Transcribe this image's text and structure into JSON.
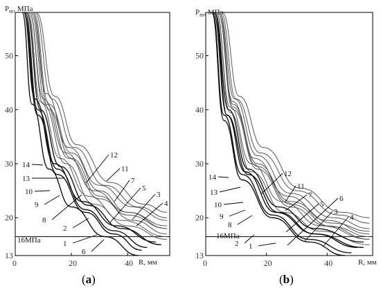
{
  "chart_data": [
    {
      "type": "line",
      "panel_label": "a",
      "ylabel": "P",
      "ylabel_sub": "m",
      "ylabel_unit": ", МПа",
      "xlabel": "R, мм",
      "xlim": [
        0,
        55
      ],
      "ylim": [
        13,
        58
      ],
      "x_ticks": [
        "0",
        "20",
        "40"
      ],
      "y_ticks": [
        "13",
        "20",
        "30",
        "40",
        "50"
      ],
      "reference_line": {
        "y": 16.5,
        "label": "16МПа"
      },
      "series": [
        {
          "name": "1",
          "values": [
            [
              3,
              58
            ],
            [
              8,
              39
            ],
            [
              15,
              28
            ],
            [
              25,
              21
            ],
            [
              35,
              17
            ],
            [
              45,
              14
            ]
          ]
        },
        {
          "name": "2",
          "values": [
            [
              3.5,
              58
            ],
            [
              8,
              40
            ],
            [
              15,
              29
            ],
            [
              25,
              21.5
            ],
            [
              35,
              17.6
            ],
            [
              47,
              14.5
            ]
          ]
        },
        {
          "name": "3",
          "values": [
            [
              6,
              58
            ],
            [
              12,
              40
            ],
            [
              20,
              31
            ],
            [
              30,
              24
            ],
            [
              40,
              20.5
            ],
            [
              54,
              18
            ]
          ]
        },
        {
          "name": "4",
          "values": [
            [
              6.5,
              58
            ],
            [
              12,
              41
            ],
            [
              20,
              32
            ],
            [
              30,
              25
            ],
            [
              40,
              21
            ],
            [
              54,
              18.5
            ]
          ]
        },
        {
          "name": "5",
          "values": [
            [
              5,
              58
            ],
            [
              10,
              41
            ],
            [
              18,
              30
            ],
            [
              28,
              22.5
            ],
            [
              40,
              18.5
            ],
            [
              54,
              16
            ]
          ]
        },
        {
          "name": "6",
          "values": [
            [
              2.5,
              58
            ],
            [
              6,
              41
            ],
            [
              12,
              29
            ],
            [
              20,
              22
            ],
            [
              32,
              16.5
            ],
            [
              44,
              13
            ]
          ]
        },
        {
          "name": "7",
          "values": [
            [
              5.5,
              58
            ],
            [
              11,
              41
            ],
            [
              19,
              31
            ],
            [
              30,
              23.5
            ],
            [
              42,
              19.5
            ],
            [
              54,
              17
            ]
          ]
        },
        {
          "name": "8",
          "values": [
            [
              4,
              58
            ],
            [
              9,
              40
            ],
            [
              16,
              29.5
            ],
            [
              26,
              22.3
            ],
            [
              38,
              18
            ],
            [
              52,
              15
            ]
          ]
        },
        {
          "name": "9",
          "values": [
            [
              3,
              58
            ],
            [
              7,
              42
            ],
            [
              14,
              30
            ],
            [
              24,
              23
            ],
            [
              36,
              18.5
            ],
            [
              50,
              15.5
            ]
          ]
        },
        {
          "name": "10",
          "values": [
            [
              4.5,
              58
            ],
            [
              9,
              41.5
            ],
            [
              16,
              31
            ],
            [
              26,
              24
            ],
            [
              38,
              19.5
            ],
            [
              54,
              16.5
            ]
          ]
        },
        {
          "name": "11",
          "values": [
            [
              7,
              58
            ],
            [
              13,
              42
            ],
            [
              21,
              33
            ],
            [
              32,
              26
            ],
            [
              44,
              22
            ],
            [
              54,
              20
            ]
          ]
        },
        {
          "name": "12",
          "values": [
            [
              7.5,
              58
            ],
            [
              14,
              42.5
            ],
            [
              22,
              33.5
            ],
            [
              34,
              26.5
            ],
            [
              46,
              22.5
            ],
            [
              54,
              21
            ]
          ]
        },
        {
          "name": "13",
          "values": [
            [
              5,
              58
            ],
            [
              10,
              42
            ],
            [
              18,
              32
            ],
            [
              28,
              25
            ],
            [
              40,
              21
            ],
            [
              54,
              18
            ]
          ]
        },
        {
          "name": "14",
          "values": [
            [
              6,
              58
            ],
            [
              11,
              43
            ],
            [
              19,
              33
            ],
            [
              30,
              26
            ],
            [
              42,
              22
            ],
            [
              54,
              19.5
            ]
          ]
        }
      ]
    },
    {
      "type": "line",
      "panel_label": "b",
      "ylabel": "P",
      "ylabel_sub": "m",
      "ylabel_unit": ", МПа",
      "xlabel": "R, мм",
      "xlim": [
        0,
        55
      ],
      "ylim": [
        13,
        58
      ],
      "x_ticks": [
        "0",
        "20",
        "40"
      ],
      "y_ticks": [
        "13",
        "20",
        "30",
        "40",
        "50"
      ],
      "reference_line": {
        "y": 16.5,
        "label": "16МПа"
      },
      "series": [
        {
          "name": "1",
          "values": [
            [
              2,
              58
            ],
            [
              6,
              38
            ],
            [
              12,
              27
            ],
            [
              22,
              20
            ],
            [
              34,
              15.5
            ],
            [
              46,
              13
            ]
          ]
        },
        {
          "name": "2",
          "values": [
            [
              2.2,
              58
            ],
            [
              6,
              39
            ],
            [
              12,
              28
            ],
            [
              22,
              20.5
            ],
            [
              34,
              16
            ],
            [
              48,
              13.5
            ]
          ]
        },
        {
          "name": "3",
          "values": [
            [
              4,
              58
            ],
            [
              9,
              40
            ],
            [
              17,
              29
            ],
            [
              28,
              22
            ],
            [
              40,
              18.5
            ],
            [
              54,
              16
            ]
          ]
        },
        {
          "name": "4",
          "values": [
            [
              4.5,
              58
            ],
            [
              9,
              40.5
            ],
            [
              17,
              29.5
            ],
            [
              28,
              22.5
            ],
            [
              42,
              18.3
            ],
            [
              54,
              16.5
            ]
          ]
        },
        {
          "name": "5",
          "values": [
            [
              3.5,
              58
            ],
            [
              8,
              39.5
            ],
            [
              15,
              28.5
            ],
            [
              26,
              21
            ],
            [
              38,
              17.5
            ],
            [
              54,
              15
            ]
          ]
        },
        {
          "name": "6",
          "values": [
            [
              3,
              58
            ],
            [
              7,
              39
            ],
            [
              14,
              28
            ],
            [
              24,
              21
            ],
            [
              36,
              17
            ],
            [
              52,
              14.5
            ]
          ]
        },
        {
          "name": "7",
          "values": [
            [
              4,
              58
            ],
            [
              9,
              41
            ],
            [
              17,
              30
            ],
            [
              28,
              23
            ],
            [
              42,
              19
            ],
            [
              54,
              17.5
            ]
          ]
        },
        {
          "name": "8",
          "values": [
            [
              2.5,
              58
            ],
            [
              7,
              39
            ],
            [
              13,
              28.5
            ],
            [
              23,
              21
            ],
            [
              36,
              17
            ],
            [
              50,
              14.5
            ]
          ]
        },
        {
          "name": "9",
          "values": [
            [
              3,
              58
            ],
            [
              7.5,
              40
            ],
            [
              14,
              29
            ],
            [
              24,
              22
            ],
            [
              36,
              18
            ],
            [
              52,
              15.5
            ]
          ]
        },
        {
          "name": "10",
          "values": [
            [
              3.5,
              58
            ],
            [
              8,
              40.5
            ],
            [
              15,
              30
            ],
            [
              25,
              23
            ],
            [
              38,
              18.5
            ],
            [
              54,
              16
            ]
          ]
        },
        {
          "name": "11",
          "values": [
            [
              5,
              58
            ],
            [
              10,
              42
            ],
            [
              18,
              32
            ],
            [
              30,
              25
            ],
            [
              44,
              20.5
            ],
            [
              54,
              19
            ]
          ]
        },
        {
          "name": "12",
          "values": [
            [
              5.5,
              58
            ],
            [
              11,
              42.5
            ],
            [
              19,
              33
            ],
            [
              31,
              25.5
            ],
            [
              45,
              21
            ],
            [
              54,
              20
            ]
          ]
        },
        {
          "name": "13",
          "values": [
            [
              4,
              58
            ],
            [
              9,
              41.5
            ],
            [
              16,
              31
            ],
            [
              27,
              24
            ],
            [
              40,
              19.5
            ],
            [
              54,
              17
            ]
          ]
        },
        {
          "name": "14",
          "values": [
            [
              4.5,
              58
            ],
            [
              9.5,
              42
            ],
            [
              17,
              31.5
            ],
            [
              28,
              24.5
            ],
            [
              42,
              20
            ],
            [
              54,
              18
            ]
          ]
        }
      ]
    }
  ]
}
